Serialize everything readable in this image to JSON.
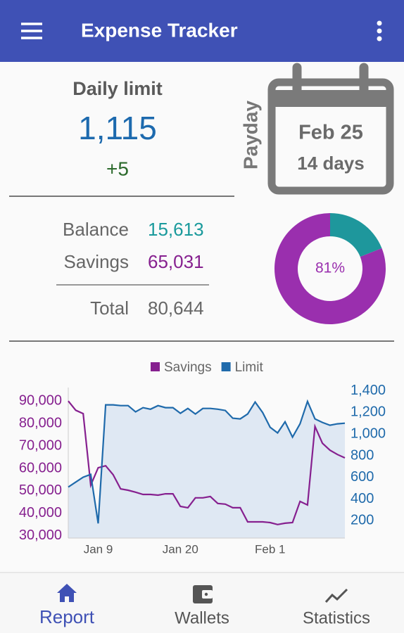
{
  "app_bar": {
    "title": "Expense Tracker"
  },
  "daily_limit": {
    "label": "Daily limit",
    "value": "1,115",
    "change": "+5"
  },
  "payday": {
    "label": "Payday",
    "date": "Feb 25",
    "days": "14 days"
  },
  "summary": {
    "rows": [
      {
        "label": "Balance",
        "value": "15,613"
      },
      {
        "label": "Savings",
        "value": "65,031"
      },
      {
        "label": "Total",
        "value": "80,644"
      }
    ]
  },
  "chart_data": [
    {
      "type": "pie",
      "values": [
        19,
        81
      ],
      "value_labels": [
        null,
        "81%"
      ],
      "colors": [
        "#1e979c",
        "#9a2fae"
      ]
    },
    {
      "type": "line",
      "legend": "top",
      "categories": [
        null,
        null,
        null,
        null,
        "Jan 9",
        null,
        null,
        null,
        null,
        null,
        null,
        null,
        null,
        null,
        null,
        "Jan 20",
        null,
        null,
        null,
        null,
        null,
        null,
        null,
        null,
        null,
        null,
        null,
        "Feb 1",
        null,
        null,
        null,
        null,
        null,
        null,
        null,
        null,
        null,
        null
      ],
      "series": [
        {
          "name": "Savings",
          "color": "#86208f",
          "axis": "y",
          "values": [
            90000,
            85900,
            84400,
            52500,
            60300,
            61200,
            57200,
            50900,
            50300,
            49400,
            48400,
            48400,
            48100,
            48700,
            48700,
            43100,
            42500,
            46900,
            46900,
            47500,
            44400,
            44100,
            42500,
            42500,
            36200,
            36200,
            36200,
            35900,
            35000,
            35600,
            35900,
            45300,
            43700,
            78700,
            71200,
            68100,
            66200,
            64700
          ]
        },
        {
          "name": "Limit",
          "color": "#1f6aab",
          "axis": "y2",
          "fill": "#dfe8f3",
          "values": [
            511,
            557,
            602,
            628,
            175,
            1270,
            1270,
            1263,
            1263,
            1205,
            1244,
            1230,
            1263,
            1244,
            1244,
            1192,
            1237,
            1186,
            1237,
            1237,
            1230,
            1218,
            1147,
            1140,
            1186,
            1296,
            1199,
            1063,
            1011,
            1114,
            972,
            1095,
            1302,
            1140,
            1108,
            1082,
            1095,
            1101
          ]
        }
      ],
      "ylim": [
        29000,
        96000
      ],
      "yticks": [
        {
          "value": 30000,
          "label": "30,000"
        },
        {
          "value": 40000,
          "label": "40,000"
        },
        {
          "value": 50000,
          "label": "50,000"
        },
        {
          "value": 60000,
          "label": "60,000"
        },
        {
          "value": 70000,
          "label": "70,000"
        },
        {
          "value": 80000,
          "label": "80,000"
        },
        {
          "value": 90000,
          "label": "90,000"
        }
      ],
      "y2lim": [
        40,
        1430
      ],
      "y2ticks": [
        200,
        400,
        600,
        800,
        {
          "value": 1000,
          "label": "1,000"
        },
        {
          "value": 1200,
          "label": "1,200"
        },
        {
          "value": 1400,
          "label": "1,400"
        }
      ]
    }
  ],
  "bottom_nav": {
    "items": [
      {
        "label": "Report"
      },
      {
        "label": "Wallets"
      },
      {
        "label": "Statistics"
      }
    ]
  }
}
